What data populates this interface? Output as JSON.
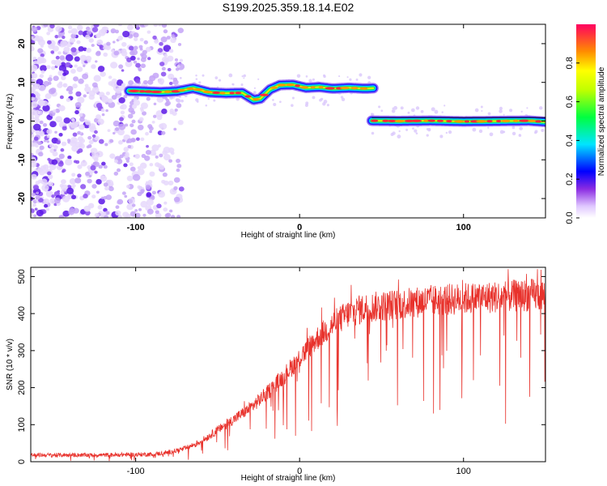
{
  "title": "S199.2025.359.18.14.E02",
  "chart_data": [
    {
      "type": "heatmap",
      "name": "spectrogram",
      "xlabel": "Height of straight line (km)",
      "ylabel": "Frequency (Hz)",
      "xlim": [
        -164,
        150
      ],
      "ylim": [
        -25,
        25
      ],
      "xticks": [
        -100,
        0,
        100
      ],
      "yticks": [
        -20,
        -10,
        0,
        10,
        20
      ],
      "noise_region_x": [
        -164,
        -80
      ],
      "tracks": [
        {
          "name": "upper-track",
          "x": [
            -104,
            -96,
            -85,
            -75,
            -65,
            -55,
            -45,
            -35,
            -28,
            -24,
            -18,
            -12,
            -4,
            4,
            12,
            20,
            30,
            40,
            45
          ],
          "y": [
            7.8,
            7.7,
            7.5,
            7.7,
            8.5,
            7.4,
            7.2,
            7.3,
            5.5,
            5.8,
            8.2,
            9.3,
            9.4,
            8.6,
            8.8,
            8.4,
            8.6,
            8.4,
            8.5
          ]
        },
        {
          "name": "lower-track",
          "x": [
            44,
            60,
            80,
            100,
            120,
            140,
            150
          ],
          "y": [
            0.1,
            0.0,
            0.1,
            -0.1,
            0.0,
            0.1,
            -0.2
          ]
        }
      ],
      "colorbar": {
        "label": "Normalized spectral amplitude",
        "range": [
          0,
          1
        ],
        "ticks": [
          "0.0",
          "0.2",
          "0.4",
          "0.6",
          "0.8"
        ]
      }
    },
    {
      "type": "line",
      "name": "snr",
      "xlabel": "Height of straight line (km)",
      "ylabel": "SNR (10 * v/v)",
      "xlim": [
        -164,
        150
      ],
      "ylim": [
        0,
        525
      ],
      "xticks": [
        -100,
        0,
        100
      ],
      "yticks": [
        0,
        100,
        200,
        300,
        400,
        500
      ],
      "color": "#e8322c",
      "series": [
        {
          "name": "SNR",
          "x": [
            -164,
            -120,
            -90,
            -80,
            -70,
            -60,
            -50,
            -40,
            -30,
            -20,
            -10,
            0,
            10,
            20,
            30,
            40,
            60,
            80,
            100,
            120,
            140,
            150
          ],
          "values": [
            18,
            18,
            20,
            25,
            35,
            55,
            85,
            115,
            145,
            185,
            230,
            280,
            330,
            370,
            400,
            415,
            425,
            435,
            440,
            445,
            450,
            450
          ]
        }
      ]
    }
  ]
}
